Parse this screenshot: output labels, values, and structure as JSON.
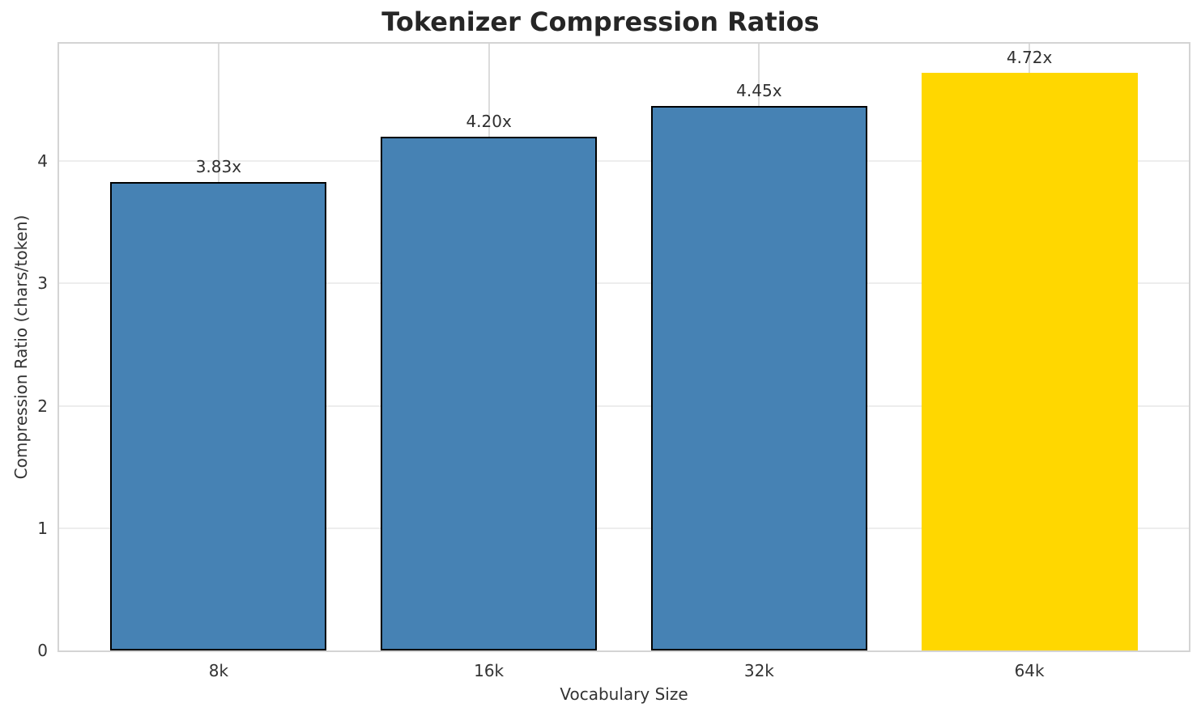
{
  "chart_data": {
    "type": "bar",
    "title": "Tokenizer Compression Ratios",
    "xlabel": "Vocabulary Size",
    "ylabel": "Compression Ratio (chars/token)",
    "categories": [
      "8k",
      "16k",
      "32k",
      "64k"
    ],
    "values": [
      3.83,
      4.2,
      4.45,
      4.72
    ],
    "bar_labels": [
      "3.83x",
      "4.20x",
      "4.45x",
      "4.72x"
    ],
    "yticks": [
      0,
      1,
      2,
      3,
      4
    ],
    "ylim": [
      0,
      4.96
    ],
    "grid": "both",
    "legend_position": "none",
    "bar_colors": [
      "#4682B4",
      "#4682B4",
      "#4682B4",
      "#FFD700"
    ],
    "bar_edge_colors": [
      "#000000",
      "#000000",
      "#000000",
      "none"
    ],
    "colors": {
      "base_bar": "#4682B4",
      "highlight_bar": "#FFD700",
      "bar_edge": "#000000",
      "spine": "#d4d4d4",
      "gridline": "#e8e8e8",
      "text": "#333333",
      "title_text": "#262626"
    }
  }
}
